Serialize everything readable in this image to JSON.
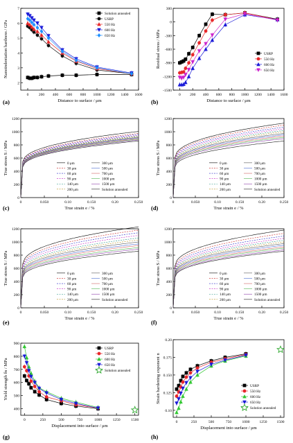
{
  "figure": {
    "panel_letters": [
      "(a)",
      "(b)",
      "(c)",
      "(d)",
      "(e)",
      "(f)",
      "(g)",
      "(h)"
    ]
  },
  "colors": {
    "solution": "#000000",
    "usrp": "#111111",
    "hz550": "#e8282a",
    "hz600": "#1a1ad8",
    "hz650": "#cc22cc",
    "hz600_a": "#33c833",
    "hz650_a": "#1e90ff",
    "axis": "#000000"
  },
  "chart_data": [
    {
      "panel": "(a)",
      "type": "scatter",
      "xlabel": "Distance to surface / μm",
      "ylabel": "Nanoindentation hardness / GPa",
      "xlim": [
        -100,
        1600
      ],
      "ylim": [
        1.5,
        7.0
      ],
      "xticks": [
        0,
        200,
        400,
        600,
        800,
        1000,
        1200,
        1400,
        1600
      ],
      "yticks": [
        2,
        3,
        4,
        5,
        6,
        7
      ],
      "legend": "top-right",
      "series": [
        {
          "name": "Solution annealed",
          "marker": "square",
          "color": "#000000",
          "x": [
            0,
            30,
            60,
            90,
            140,
            200,
            300,
            500,
            700,
            1000,
            1500
          ],
          "y": [
            2.35,
            2.3,
            2.3,
            2.35,
            2.35,
            2.4,
            2.45,
            2.5,
            2.5,
            2.55,
            2.55
          ]
        },
        {
          "name": "USRP",
          "marker": "circle",
          "color": "#111111",
          "x": [
            0,
            30,
            60,
            90,
            140,
            200,
            300,
            500,
            700,
            1000,
            1500
          ],
          "y": [
            5.8,
            5.7,
            5.55,
            5.4,
            5.2,
            4.95,
            4.5,
            3.8,
            3.3,
            2.85,
            2.6
          ]
        },
        {
          "name": "550 Hz",
          "marker": "triangle",
          "color": "#e8282a",
          "x": [
            0,
            30,
            60,
            90,
            140,
            200,
            300,
            500,
            700,
            1000,
            1500
          ],
          "y": [
            6.0,
            5.9,
            5.75,
            5.6,
            5.45,
            5.2,
            4.75,
            4.0,
            3.45,
            2.95,
            2.6
          ]
        },
        {
          "name": "600 Hz",
          "marker": "triangle-down",
          "color": "#1a1ad8",
          "x": [
            0,
            30,
            60,
            90,
            140,
            200,
            300,
            500,
            700,
            1000,
            1500
          ],
          "y": [
            6.6,
            6.5,
            6.35,
            6.2,
            6.0,
            5.7,
            5.15,
            4.2,
            3.6,
            3.05,
            2.65
          ]
        },
        {
          "name": "650 Hz",
          "marker": "diamond",
          "color": "#1e90ff",
          "x": [
            0,
            30,
            60,
            90,
            140,
            200,
            300,
            500,
            700,
            1000,
            1500
          ],
          "y": [
            6.3,
            6.2,
            6.05,
            5.9,
            5.7,
            5.45,
            5.0,
            4.1,
            3.5,
            3.0,
            2.6
          ]
        }
      ]
    },
    {
      "panel": "(b)",
      "type": "line",
      "xlabel": "Distance to surface / μm",
      "ylabel": "Residual stress / MPa",
      "xlim": [
        -100,
        1600
      ],
      "ylim": [
        -1500,
        300
      ],
      "xticks": [
        0,
        200,
        400,
        600,
        800,
        1000,
        1200,
        1400,
        1600
      ],
      "yticks": [
        -1500,
        -1200,
        -900,
        -600,
        -300,
        0,
        300
      ],
      "legend": "right",
      "series": [
        {
          "name": "USRP",
          "marker": "square",
          "color": "#000000",
          "x": [
            0,
            30,
            60,
            90,
            140,
            200,
            300,
            400,
            500,
            700,
            1000,
            1500
          ],
          "y": [
            -900,
            -880,
            -860,
            -820,
            -700,
            -560,
            -300,
            -50,
            170,
            160,
            200,
            60
          ]
        },
        {
          "name": "550 Hz",
          "marker": "circle",
          "color": "#e8282a",
          "x": [
            0,
            30,
            60,
            90,
            140,
            200,
            300,
            400,
            500,
            700,
            1000,
            1500
          ],
          "y": [
            -1120,
            -1110,
            -1100,
            -1020,
            -900,
            -720,
            -460,
            -200,
            40,
            160,
            200,
            50
          ]
        },
        {
          "name": "600 Hz",
          "marker": "triangle",
          "color": "#1a1ad8",
          "x": [
            0,
            30,
            60,
            90,
            140,
            200,
            300,
            400,
            500,
            700,
            1000,
            1500
          ],
          "y": [
            -1380,
            -1380,
            -1370,
            -1330,
            -1200,
            -1020,
            -800,
            -600,
            -400,
            -60,
            160,
            50
          ]
        },
        {
          "name": "650 Hz",
          "marker": "triangle-down",
          "color": "#cc22cc",
          "x": [
            0,
            30,
            60,
            90,
            140,
            200,
            300,
            400,
            500,
            700,
            1000,
            1500
          ],
          "y": [
            -1220,
            -1240,
            -1220,
            -1160,
            -1050,
            -880,
            -640,
            -480,
            -290,
            60,
            180,
            40
          ]
        }
      ]
    },
    {
      "panel": "(c)",
      "type": "line",
      "xlabel": "True strain e / %",
      "ylabel": "True stress S / MPa",
      "xlim": [
        0,
        0.25
      ],
      "ylim": [
        0,
        1200
      ],
      "xticks": [
        0.0,
        0.05,
        0.1,
        0.15,
        0.2,
        0.25
      ],
      "yticks": [
        0,
        200,
        400,
        600,
        800,
        1000,
        1200
      ],
      "legend_col1": [
        "0 μm",
        "30 μm",
        "60 μm",
        "90 μm",
        "140 μm",
        "200 μm"
      ],
      "legend_col2": [
        "300 μm",
        "500 μm",
        "700 μm",
        "1000 μm",
        "1500 μm",
        "Solution annealed"
      ],
      "curve_end_stress": [
        1005,
        975,
        960,
        945,
        935,
        925,
        915,
        905,
        895,
        885,
        875,
        860
      ]
    },
    {
      "panel": "(d)",
      "type": "line",
      "xlabel": "True strain e / %",
      "ylabel": "True stress S / MPa",
      "xlim": [
        0,
        0.25
      ],
      "ylim": [
        0,
        1200
      ],
      "xticks": [
        0.0,
        0.05,
        0.1,
        0.15,
        0.2,
        0.25
      ],
      "yticks": [
        0,
        200,
        400,
        600,
        800,
        1000,
        1200
      ],
      "legend_col1": [
        "0 μm",
        "30 μm",
        "60 μm",
        "90 μm",
        "140 μm",
        "200 μm"
      ],
      "legend_col2": [
        "300 μm",
        "500 μm",
        "700 μm",
        "1000 μm",
        "1500 μm",
        "Solution annealed"
      ],
      "curve_end_stress": [
        1130,
        1100,
        1070,
        1045,
        1020,
        1000,
        975,
        955,
        935,
        915,
        895,
        860
      ]
    },
    {
      "panel": "(e)",
      "type": "line",
      "xlabel": "True strain e / %",
      "ylabel": "True stress S / MPa",
      "xlim": [
        0,
        0.25
      ],
      "ylim": [
        0,
        1200
      ],
      "xticks": [
        0.0,
        0.05,
        0.1,
        0.15,
        0.2,
        0.25
      ],
      "yticks": [
        0,
        200,
        400,
        600,
        800,
        1000,
        1200
      ],
      "legend_col1": [
        "0 μm",
        "30 μm",
        "60 μm",
        "90 μm",
        "140 μm",
        "200 μm"
      ],
      "legend_col2": [
        "300 μm",
        "500 μm",
        "700 μm",
        "1000 μm",
        "1500 μm",
        "Solution annealed"
      ],
      "curve_end_stress": [
        1230,
        1180,
        1140,
        1100,
        1060,
        1030,
        1000,
        970,
        945,
        915,
        890,
        860
      ]
    },
    {
      "panel": "(f)",
      "type": "line",
      "xlabel": "True strain e / %",
      "ylabel": "True stress S / MPa",
      "xlim": [
        0,
        0.25
      ],
      "ylim": [
        0,
        1200
      ],
      "xticks": [
        0.0,
        0.05,
        0.1,
        0.15,
        0.2,
        0.25
      ],
      "yticks": [
        0,
        200,
        400,
        600,
        800,
        1000,
        1200
      ],
      "legend_col1": [
        "0 μm",
        "30 μm",
        "60 μm",
        "90 μm",
        "140 μm",
        "200 μm"
      ],
      "legend_col2": [
        "300 μm",
        "500 μm",
        "700 μm",
        "1000 μm",
        "1500 μm",
        "Solution annealed"
      ],
      "curve_end_stress": [
        1180,
        1130,
        1090,
        1055,
        1025,
        1000,
        975,
        950,
        925,
        905,
        880,
        860
      ]
    },
    {
      "panel": "(g)",
      "type": "scatter",
      "xlabel": "Displacement into surface / μm",
      "ylabel": "Yield strength δs / MPa",
      "xlim": [
        -50,
        1550
      ],
      "ylim": [
        350,
        900
      ],
      "xticks": [
        0,
        250,
        500,
        750,
        1000,
        1250,
        1500
      ],
      "yticks": [
        400,
        500,
        600,
        700,
        800,
        900
      ],
      "legend": "top-right",
      "series": [
        {
          "name": "USRP",
          "marker": "square",
          "color": "#000000",
          "x": [
            0,
            30,
            60,
            90,
            140,
            200,
            300,
            500,
            700,
            1000
          ],
          "y": [
            650,
            615,
            590,
            560,
            530,
            505,
            470,
            440,
            420,
            400
          ]
        },
        {
          "name": "550 Hz",
          "marker": "circle",
          "color": "#e8282a",
          "x": [
            0,
            30,
            60,
            90,
            140,
            200,
            300,
            500,
            700,
            1000
          ],
          "y": [
            720,
            690,
            650,
            610,
            570,
            530,
            490,
            460,
            430,
            405
          ]
        },
        {
          "name": "600 Hz",
          "marker": "triangle",
          "color": "#33c833",
          "x": [
            0,
            30,
            60,
            90,
            140,
            200,
            300,
            500,
            700,
            1000
          ],
          "y": [
            875,
            790,
            720,
            670,
            610,
            560,
            530,
            480,
            450,
            410
          ]
        },
        {
          "name": "650 Hz",
          "marker": "triangle-down",
          "color": "#1a1ad8",
          "x": [
            0,
            30,
            60,
            90,
            140,
            200,
            300,
            500,
            700,
            1000
          ],
          "y": [
            800,
            750,
            690,
            645,
            600,
            555,
            520,
            470,
            440,
            405
          ]
        },
        {
          "name": "Solution annealed",
          "marker": "star",
          "color": "#33aa33",
          "x": [
            1500
          ],
          "y": [
            390
          ]
        }
      ]
    },
    {
      "panel": "(h)",
      "type": "scatter",
      "xlabel": "Displacement into surface / μm",
      "ylabel": "Strain hardening exponent n",
      "xlim": [
        -50,
        1550
      ],
      "ylim": [
        0.09,
        0.2
      ],
      "xticks": [
        0,
        250,
        500,
        750,
        1000,
        1250,
        1500
      ],
      "yticks": [
        0.1,
        0.125,
        0.15,
        0.175,
        0.2
      ],
      "legend": "bottom-right",
      "series": [
        {
          "name": "USRP",
          "marker": "square",
          "color": "#000000",
          "x": [
            0,
            30,
            60,
            90,
            140,
            200,
            300,
            500,
            700,
            1000
          ],
          "y": [
            0.13,
            0.135,
            0.142,
            0.148,
            0.153,
            0.158,
            0.163,
            0.17,
            0.175,
            0.18
          ]
        },
        {
          "name": "550 Hz",
          "marker": "circle",
          "color": "#e8282a",
          "x": [
            0,
            30,
            60,
            90,
            140,
            200,
            300,
            500,
            700,
            1000
          ],
          "y": [
            0.12,
            0.126,
            0.133,
            0.14,
            0.147,
            0.153,
            0.16,
            0.168,
            0.173,
            0.179
          ]
        },
        {
          "name": "600 Hz",
          "marker": "triangle",
          "color": "#33c833",
          "x": [
            0,
            30,
            60,
            90,
            140,
            200,
            300,
            500,
            700,
            1000
          ],
          "y": [
            0.097,
            0.103,
            0.112,
            0.12,
            0.13,
            0.14,
            0.15,
            0.163,
            0.17,
            0.177
          ]
        },
        {
          "name": "650 Hz",
          "marker": "triangle-down",
          "color": "#1a1ad8",
          "x": [
            0,
            30,
            60,
            90,
            140,
            200,
            300,
            500,
            700,
            1000
          ],
          "y": [
            0.11,
            0.116,
            0.124,
            0.131,
            0.139,
            0.146,
            0.155,
            0.165,
            0.171,
            0.178
          ]
        },
        {
          "name": "Solution annealed",
          "marker": "star",
          "color": "#33aa33",
          "x": [
            1500
          ],
          "y": [
            0.186
          ]
        }
      ]
    }
  ]
}
